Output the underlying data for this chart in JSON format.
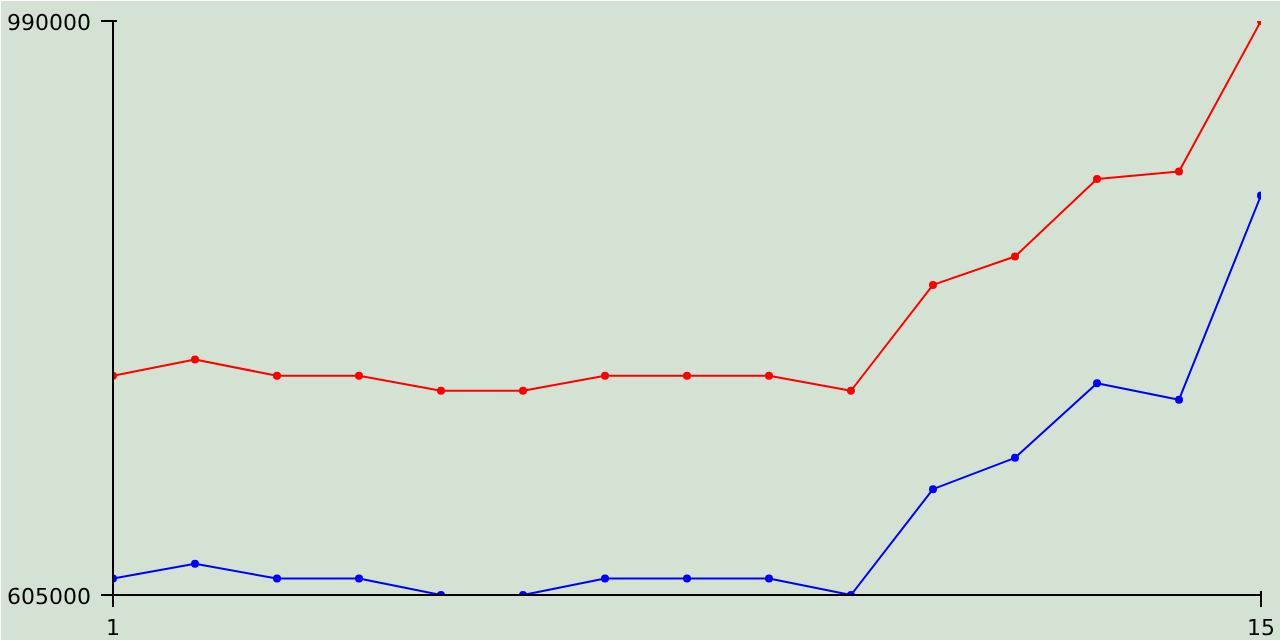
{
  "chart_data": {
    "type": "line",
    "x": [
      1,
      2,
      3,
      4,
      5,
      6,
      7,
      8,
      9,
      10,
      11,
      12,
      13,
      14,
      15
    ],
    "series": [
      {
        "color": "#ff0000",
        "values": [
          752000,
          763000,
          752000,
          752000,
          742000,
          742000,
          752000,
          752000,
          752000,
          742000,
          813000,
          832000,
          884000,
          889000,
          990000
        ]
      },
      {
        "color": "#0000ff",
        "values": [
          616000,
          626000,
          616000,
          616000,
          605000,
          605000,
          616000,
          616000,
          616000,
          605000,
          676000,
          697000,
          747000,
          736000,
          873000
        ]
      }
    ],
    "xlim": [
      1,
      15
    ],
    "ylim": [
      605000,
      990000
    ],
    "xticks": [
      1,
      15
    ],
    "yticks": [
      605000,
      990000
    ],
    "marker": "circle",
    "line_style": "solid"
  }
}
